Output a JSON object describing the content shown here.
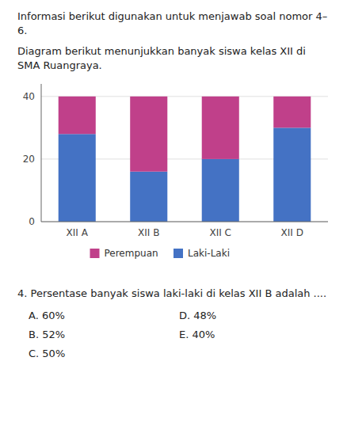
{
  "chart_data": {
    "type": "bar",
    "title": "Informasi berikut digunakan untuk menjawab soal nomor 4–6.",
    "subtitle": "Diagram berikut menunjukkan banyak siswa kelas XII di SMA Ruangraya.",
    "categories": [
      "XII A",
      "XII B",
      "XII C",
      "XII D"
    ],
    "series": [
      {
        "name": "Laki-Laki",
        "color": "#4472C4",
        "values": [
          28,
          16,
          20,
          30
        ]
      },
      {
        "name": "Perempuan",
        "color": "#C0408A",
        "values": [
          12,
          24,
          20,
          10
        ]
      }
    ],
    "stacked": true,
    "ylim": [
      0,
      44
    ],
    "yticks": [
      0,
      20,
      40
    ],
    "grid": true,
    "legend": "bottom",
    "annotations": [
      "4. Persentase banyak siswa laki-laki di kelas XII B adalah ....",
      "A. 60%",
      "B. 52%",
      "C. 50%",
      "D. 48%",
      "E. 40%"
    ]
  }
}
